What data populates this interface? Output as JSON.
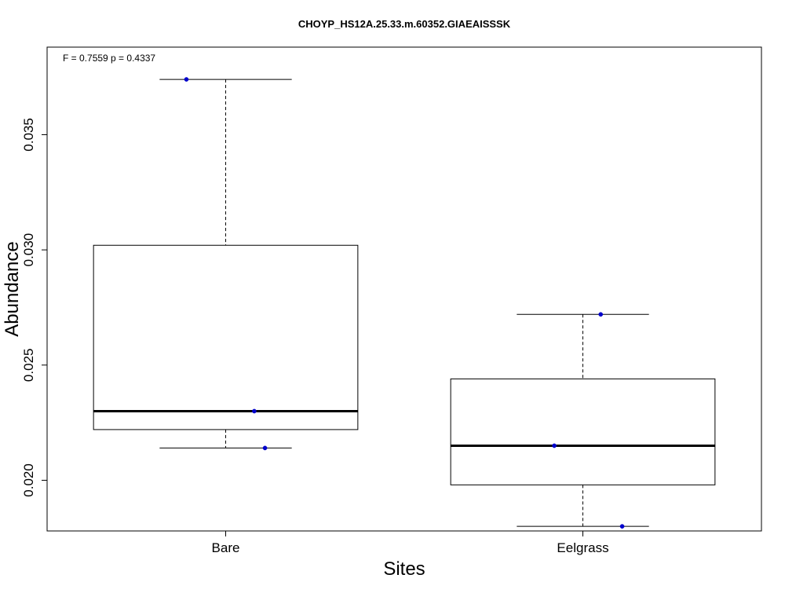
{
  "chart_data": {
    "type": "boxplot",
    "title": "CHOYP_HS12A.25.33.m.60352.GIAEAISSSK",
    "annotation": "F = 0.7559 p = 0.4337",
    "xlabel": "Sites",
    "ylabel": "Abundance",
    "categories": [
      "Bare",
      "Eelgrass"
    ],
    "ylim": [
      0.0178,
      0.0388
    ],
    "yticks": [
      0.02,
      0.025,
      0.03,
      0.035
    ],
    "ytick_labels": [
      "0.020",
      "0.025",
      "0.030",
      "0.035"
    ],
    "boxes": [
      {
        "category": "Bare",
        "whisker_low": 0.0214,
        "q1": 0.0222,
        "median": 0.023,
        "q3": 0.0302,
        "whisker_high": 0.0374
      },
      {
        "category": "Eelgrass",
        "whisker_low": 0.018,
        "q1": 0.0198,
        "median": 0.0215,
        "q3": 0.0244,
        "whisker_high": 0.0272
      }
    ],
    "points": [
      {
        "category": "Bare",
        "jitter": -0.11,
        "value": 0.0374
      },
      {
        "category": "Bare",
        "jitter": 0.08,
        "value": 0.023
      },
      {
        "category": "Bare",
        "jitter": 0.11,
        "value": 0.0214
      },
      {
        "category": "Eelgrass",
        "jitter": 0.05,
        "value": 0.0272
      },
      {
        "category": "Eelgrass",
        "jitter": -0.08,
        "value": 0.0215
      },
      {
        "category": "Eelgrass",
        "jitter": 0.11,
        "value": 0.018
      }
    ],
    "point_color": "#0000cc",
    "grid": false
  }
}
